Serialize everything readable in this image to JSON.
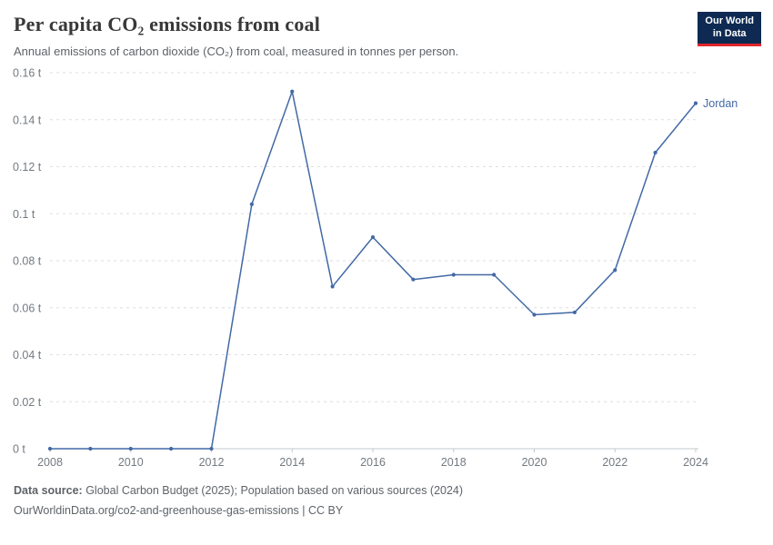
{
  "header": {
    "title": "Per capita CO₂ emissions from coal",
    "subtitle": "Annual emissions of carbon dioxide (CO₂) from coal, measured in tonnes per person.",
    "logo": {
      "line1": "Our World",
      "line2": "in Data",
      "bg": "#0e2a52",
      "accent": "#e0262d"
    }
  },
  "chart_data": {
    "type": "line",
    "title": "Per capita CO₂ emissions from coal",
    "xlabel": "",
    "ylabel": "",
    "xlim": [
      2008,
      2024
    ],
    "ylim": [
      0,
      0.16
    ],
    "grid": "horizontal-dashed",
    "grid_color": "#dcdee0",
    "axis_color": "#c3c9cd",
    "tick_label_color": "#737a80",
    "legend_position": "end-of-line",
    "x_ticks": [
      2008,
      2010,
      2012,
      2014,
      2016,
      2018,
      2020,
      2022,
      2024
    ],
    "y_ticks": [
      {
        "value": 0,
        "label": "0 t"
      },
      {
        "value": 0.02,
        "label": "0.02 t"
      },
      {
        "value": 0.04,
        "label": "0.04 t"
      },
      {
        "value": 0.06,
        "label": "0.06 t"
      },
      {
        "value": 0.08,
        "label": "0.08 t"
      },
      {
        "value": 0.1,
        "label": "0.1 t"
      },
      {
        "value": 0.12,
        "label": "0.12 t"
      },
      {
        "value": 0.14,
        "label": "0.14 t"
      },
      {
        "value": 0.16,
        "label": "0.16 t"
      }
    ],
    "series": [
      {
        "name": "Jordan",
        "color": "#4269a5",
        "x": [
          2008,
          2009,
          2010,
          2011,
          2012,
          2013,
          2014,
          2015,
          2016,
          2017,
          2018,
          2019,
          2020,
          2021,
          2022,
          2023,
          2024
        ],
        "values": [
          0,
          0,
          0,
          0,
          0,
          0.104,
          0.152,
          0.069,
          0.09,
          0.072,
          0.074,
          0.074,
          0.057,
          0.058,
          0.076,
          0.126,
          0.147
        ]
      }
    ]
  },
  "footer": {
    "source_label": "Data source:",
    "source_text": " Global Carbon Budget (2025); Population based on various sources (2024)",
    "link_text": "OurWorldinData.org/co2-and-greenhouse-gas-emissions | CC BY"
  }
}
